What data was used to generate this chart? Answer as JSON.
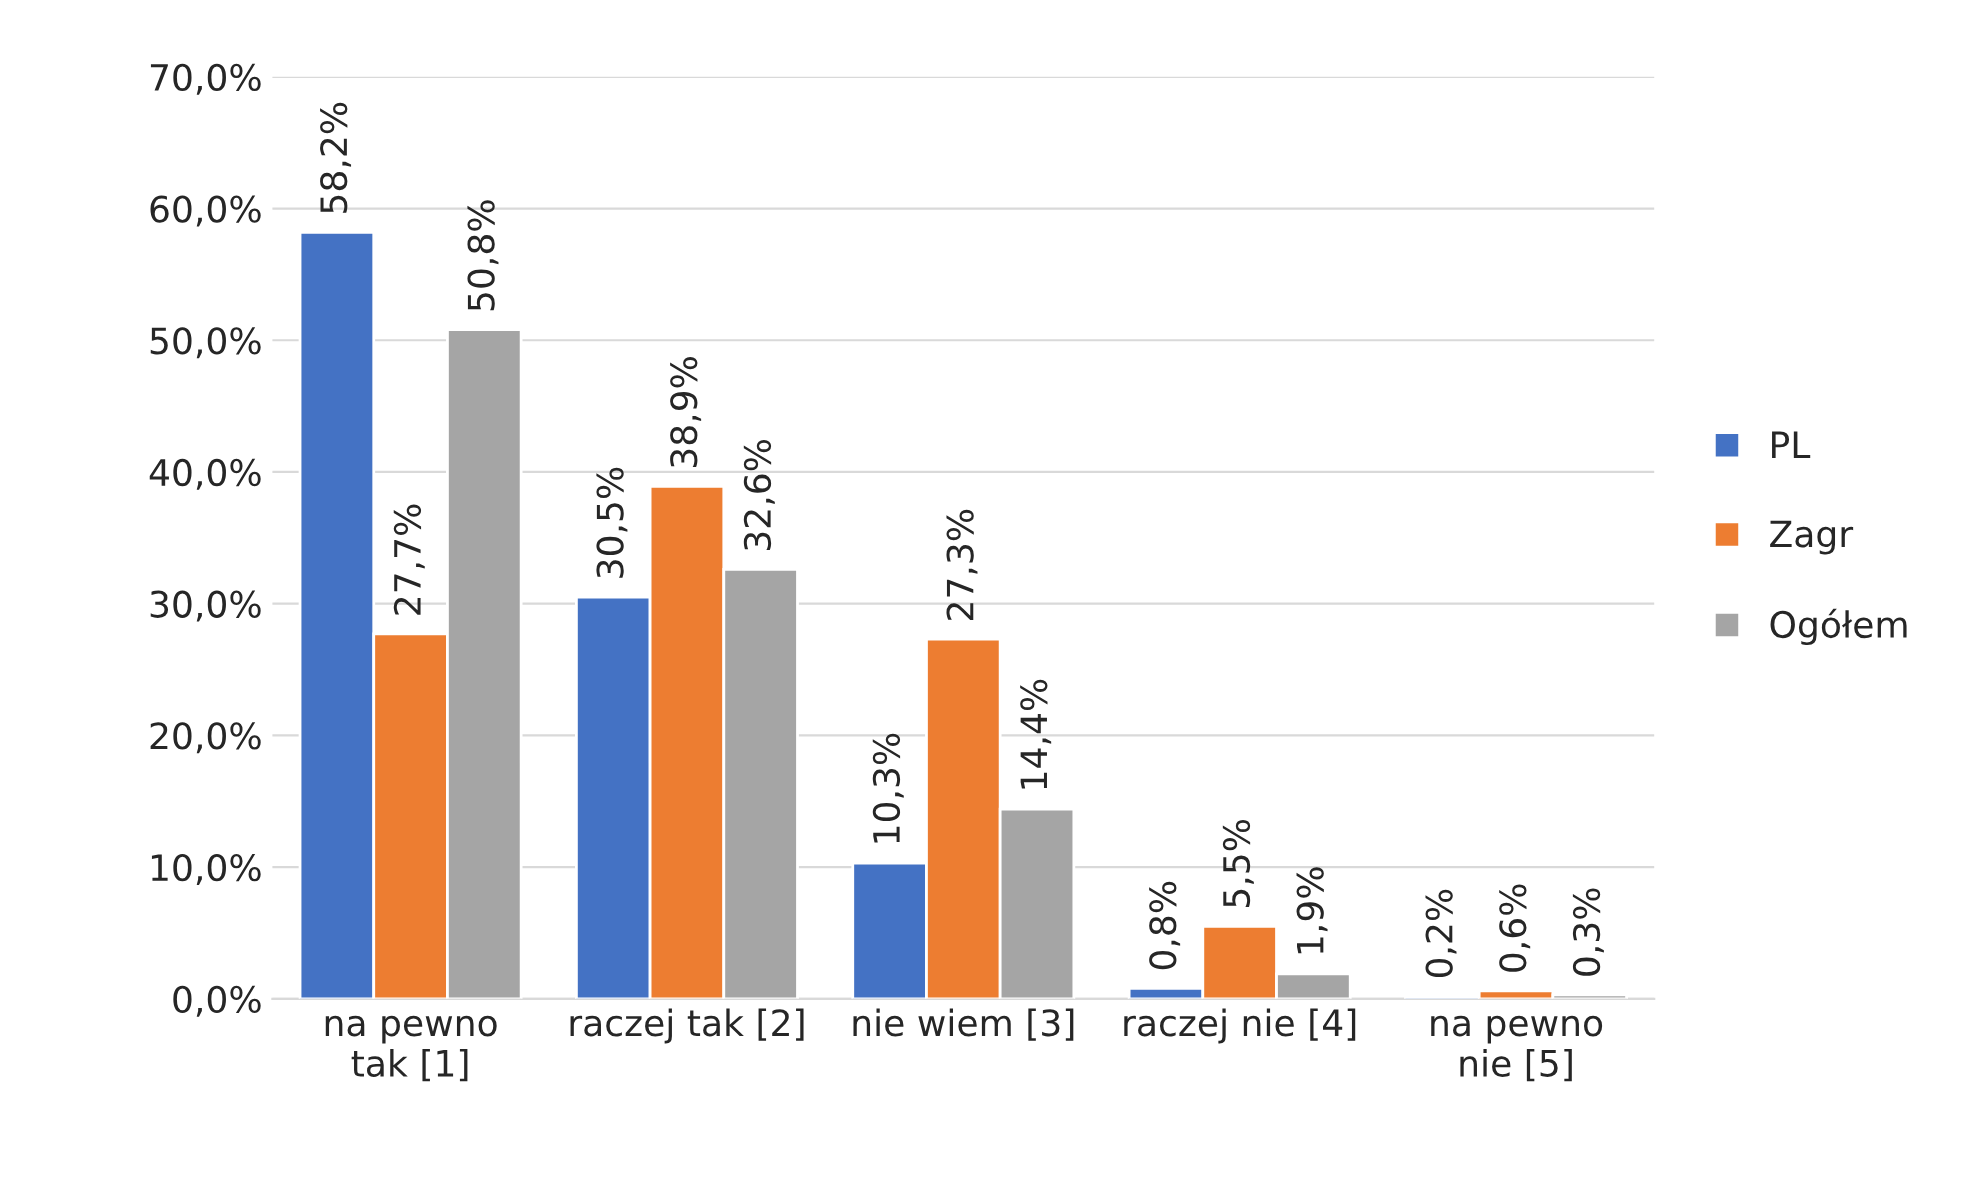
{
  "chart_data": {
    "type": "bar",
    "categories": [
      "na pewno\ntak [1]",
      "raczej tak [2]",
      "nie wiem [3]",
      "raczej nie [4]",
      "na pewno\nnie [5]"
    ],
    "series": [
      {
        "name": "PL",
        "color": "#4472c4",
        "values": [
          58.2,
          30.5,
          10.3,
          0.8,
          0.2
        ],
        "value_labels": [
          "58,2%",
          "30,5%",
          "10,3%",
          "0,8%",
          "0,2%"
        ]
      },
      {
        "name": "Zagr",
        "color": "#ed7d31",
        "values": [
          27.7,
          38.9,
          27.3,
          5.5,
          0.6
        ],
        "value_labels": [
          "27,7%",
          "38,9%",
          "27,3%",
          "5,5%",
          "0,6%"
        ]
      },
      {
        "name": "Ogółem",
        "color": "#a5a5a5",
        "values": [
          50.8,
          32.6,
          14.4,
          1.9,
          0.3
        ],
        "value_labels": [
          "50,8%",
          "32,6%",
          "14,4%",
          "1,9%",
          "0,3%"
        ]
      }
    ],
    "ylim": [
      0,
      70
    ],
    "yticks": [
      {
        "value": 0,
        "label": "0,0%"
      },
      {
        "value": 10,
        "label": "10,0%"
      },
      {
        "value": 20,
        "label": "20,0%"
      },
      {
        "value": 30,
        "label": "30,0%"
      },
      {
        "value": 40,
        "label": "40,0%"
      },
      {
        "value": 50,
        "label": "50,0%"
      },
      {
        "value": 60,
        "label": "60,0%"
      },
      {
        "value": 70,
        "label": "70,0%"
      }
    ],
    "grid": "y",
    "legend": "right"
  }
}
